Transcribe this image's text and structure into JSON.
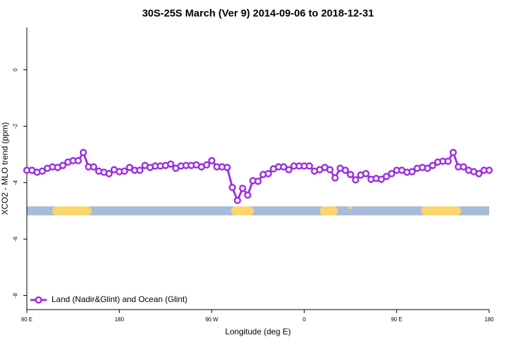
{
  "chart_data": {
    "type": "line",
    "title": "30S-25S March (Ver 9)   2014-09-06 to 2018-12-31",
    "x_label": "Longitude (deg E)",
    "y_label": "XCO2 - MLO trend (ppm)",
    "legend_position": "lower left",
    "x": [
      90,
      95,
      100,
      105,
      110,
      115,
      120,
      125,
      130,
      135,
      140,
      145,
      150,
      155,
      160,
      165,
      170,
      175,
      180,
      185,
      190,
      195,
      200,
      205,
      210,
      215,
      220,
      225,
      230,
      235,
      240,
      245,
      250,
      255,
      260,
      265,
      270,
      275,
      280,
      285,
      290,
      295,
      300,
      305,
      310,
      315,
      320,
      325,
      330,
      335,
      340,
      345,
      350,
      355,
      360,
      365,
      370,
      375,
      380,
      385,
      390,
      395,
      400,
      405,
      410,
      415,
      420,
      425,
      430,
      435,
      440,
      445,
      450,
      455,
      460,
      465,
      470,
      475,
      480,
      485,
      490,
      495,
      500,
      505,
      510,
      515,
      520,
      525,
      530,
      535,
      540
    ],
    "series": [
      {
        "name": "Land (Nadir&Glint) and Ocean (Glint)",
        "color": "#9b30e0",
        "values": [
          -3.56,
          -3.56,
          -3.63,
          -3.59,
          -3.49,
          -3.44,
          -3.46,
          -3.39,
          -3.27,
          -3.22,
          -3.22,
          -2.93,
          -3.44,
          -3.44,
          -3.59,
          -3.63,
          -3.68,
          -3.54,
          -3.61,
          -3.59,
          -3.46,
          -3.56,
          -3.56,
          -3.39,
          -3.46,
          -3.41,
          -3.41,
          -3.39,
          -3.34,
          -3.49,
          -3.41,
          -3.39,
          -3.39,
          -3.37,
          -3.44,
          -3.37,
          -3.22,
          -3.44,
          -3.44,
          -3.46,
          -4.17,
          -4.63,
          -4.2,
          -4.44,
          -3.93,
          -3.95,
          -3.71,
          -3.68,
          -3.51,
          -3.44,
          -3.44,
          -3.54,
          -3.41,
          -3.41,
          -3.41,
          -3.41,
          -3.59,
          -3.54,
          -3.46,
          -3.54,
          -3.83,
          -3.49,
          -3.56,
          -3.71,
          -3.9,
          -3.73,
          -3.68,
          -3.88,
          -3.85,
          -3.88,
          -3.78,
          -3.68,
          -3.56,
          -3.56,
          -3.63,
          -3.61,
          -3.49,
          -3.46,
          -3.49,
          -3.39,
          -3.27,
          -3.24,
          -3.24,
          -2.93,
          -3.44,
          -3.44,
          -3.56,
          -3.61,
          -3.68,
          -3.56,
          -3.56
        ]
      }
    ],
    "xlim": [
      90,
      540
    ],
    "xticks": [
      {
        "value": 90,
        "label": "90 E"
      },
      {
        "value": 180,
        "label": "180"
      },
      {
        "value": 270,
        "label": "90 W"
      },
      {
        "value": 360,
        "label": "0"
      },
      {
        "value": 450,
        "label": "90 E"
      },
      {
        "value": 540,
        "label": "180"
      }
    ],
    "ylim": [
      -8.5,
      1.5
    ],
    "yticks": [
      0,
      -2,
      -4,
      -6,
      -8
    ]
  }
}
